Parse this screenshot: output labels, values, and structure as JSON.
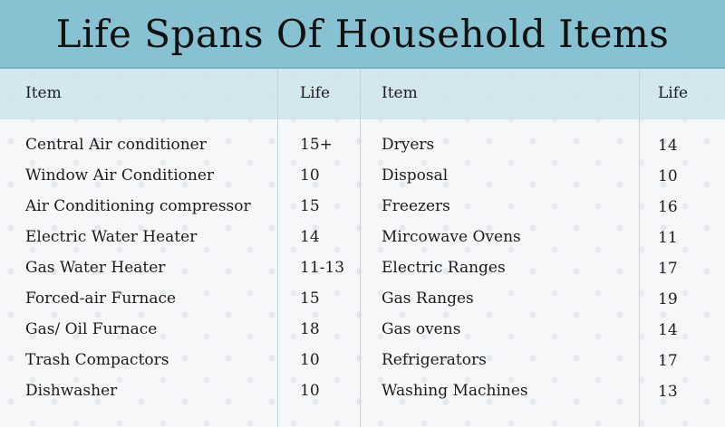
{
  "title": "Life Spans Of Household Items",
  "headers": {
    "item": "Item",
    "life": "Life"
  },
  "left_rows": [
    {
      "item": "Central Air conditioner",
      "life": "15+"
    },
    {
      "item": "Window Air Conditioner",
      "life": "10"
    },
    {
      "item": "Air Conditioning compressor",
      "life": "15"
    },
    {
      "item": "Electric Water Heater",
      "life": "14"
    },
    {
      "item": "Gas Water Heater",
      "life": "11-13"
    },
    {
      "item": "Forced-air Furnace",
      "life": "15"
    },
    {
      "item": "Gas/ Oil Furnace",
      "life": "18"
    },
    {
      "item": "Trash Compactors",
      "life": "10"
    },
    {
      "item": "Dishwasher",
      "life": "10"
    }
  ],
  "right_rows": [
    {
      "item": "Dryers",
      "life": "14"
    },
    {
      "item": "Disposal",
      "life": "10"
    },
    {
      "item": "Freezers",
      "life": "16"
    },
    {
      "item": "Mircowave Ovens",
      "life": "11"
    },
    {
      "item": "Electric Ranges",
      "life": "17"
    },
    {
      "item": "Gas Ranges",
      "life": "19"
    },
    {
      "item": "Gas ovens",
      "life": "14"
    },
    {
      "item": "Refrigerators",
      "life": "17"
    },
    {
      "item": "Washing Machines",
      "life": "13"
    }
  ]
}
